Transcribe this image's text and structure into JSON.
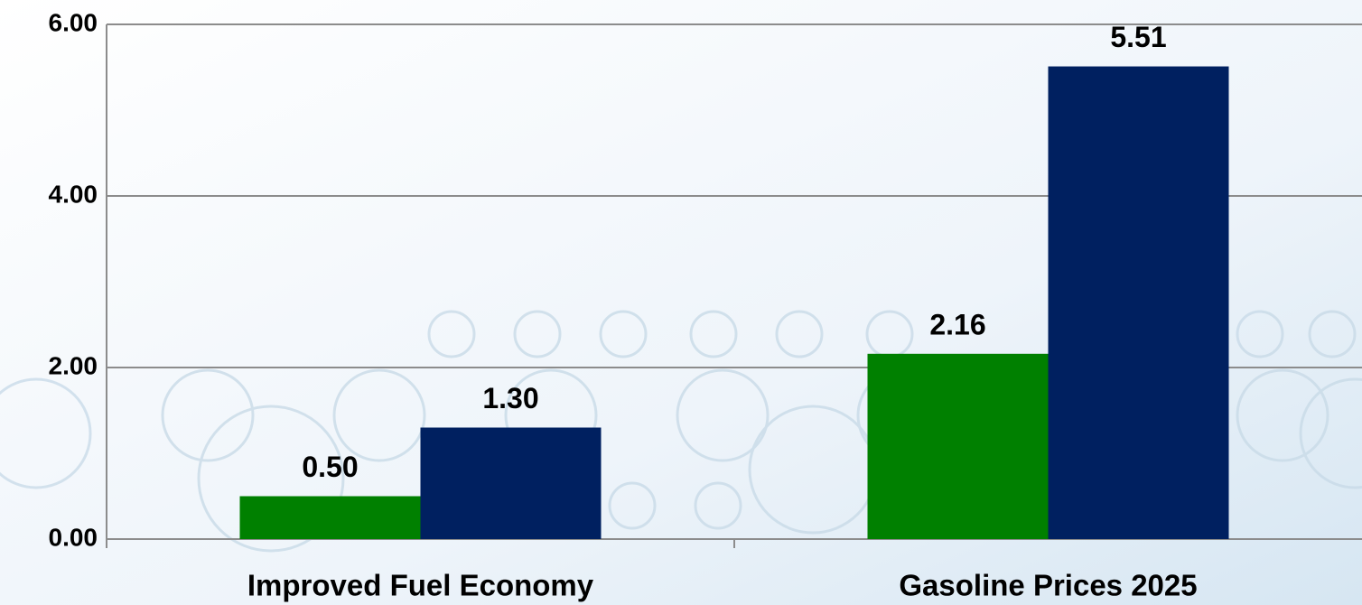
{
  "chart_data": {
    "type": "bar",
    "categories": [
      "Improved Fuel Economy",
      "Gasoline Prices 2025"
    ],
    "series": [
      {
        "color": "#008000",
        "values": [
          0.5,
          2.16
        ],
        "value_labels": [
          "0.50",
          "2.16"
        ]
      },
      {
        "color": "#002060",
        "values": [
          1.3,
          5.51
        ],
        "value_labels": [
          "1.30",
          "5.51"
        ]
      }
    ],
    "ylim": [
      0,
      6
    ],
    "yticks": [
      {
        "value": 0,
        "label": "0.00"
      },
      {
        "value": 2,
        "label": "2.00"
      },
      {
        "value": 4,
        "label": "4.00"
      },
      {
        "value": 6,
        "label": "6.00"
      }
    ],
    "grid": true
  }
}
